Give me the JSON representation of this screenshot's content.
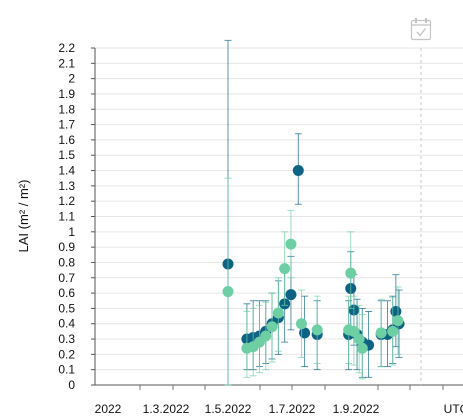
{
  "chart_data": {
    "type": "scatter",
    "title": "",
    "xlabel": "",
    "ylabel": "LAI (m² / m²)",
    "ylim": [
      0,
      2.2
    ],
    "y_ticks": [
      "0",
      "0.1",
      "0.2",
      "0.3",
      "0.4",
      "0.5",
      "0.6",
      "0.7",
      "0.8",
      "0.9",
      "1",
      "1.1",
      "1.2",
      "1.3",
      "1.4",
      "1.5",
      "1.6",
      "1.7",
      "1.8",
      "1.9",
      "2",
      "2.1",
      "2.2"
    ],
    "x_ticks": [
      "2022",
      "1.3.2022",
      "1.5.2022",
      "1.7.2022",
      "1.9.2022",
      "UTC"
    ],
    "grid": true,
    "series": [
      {
        "color": "#0e6384",
        "points": [
          {
            "x": "2022-05-01",
            "y": 0.79,
            "lo": 0.0,
            "hi": 2.25
          },
          {
            "x": "2022-05-19",
            "y": 0.3,
            "lo": 0.1,
            "hi": 0.53
          },
          {
            "x": "2022-05-25",
            "y": 0.31,
            "lo": 0.1,
            "hi": 0.55
          },
          {
            "x": "2022-05-31",
            "y": 0.32,
            "lo": 0.12,
            "hi": 0.55
          },
          {
            "x": "2022-06-06",
            "y": 0.35,
            "lo": 0.14,
            "hi": 0.55
          },
          {
            "x": "2022-06-12",
            "y": 0.4,
            "lo": 0.17,
            "hi": 0.6
          },
          {
            "x": "2022-06-18",
            "y": 0.44,
            "lo": 0.2,
            "hi": 0.68
          },
          {
            "x": "2022-06-24",
            "y": 0.53,
            "lo": 0.28,
            "hi": 0.76
          },
          {
            "x": "2022-06-30",
            "y": 0.59,
            "lo": 0.36,
            "hi": 0.84
          },
          {
            "x": "2022-07-07",
            "y": 1.4,
            "lo": 1.18,
            "hi": 1.64
          },
          {
            "x": "2022-07-13",
            "y": 0.34,
            "lo": 0.12,
            "hi": 0.58
          },
          {
            "x": "2022-07-25",
            "y": 0.33,
            "lo": 0.1,
            "hi": 0.55
          },
          {
            "x": "2022-08-24",
            "y": 0.33,
            "lo": 0.1,
            "hi": 0.55
          },
          {
            "x": "2022-08-26",
            "y": 0.63,
            "lo": 0.38,
            "hi": 0.87
          },
          {
            "x": "2022-08-29",
            "y": 0.49,
            "lo": 0.26,
            "hi": 0.72
          },
          {
            "x": "2022-09-01",
            "y": 0.33,
            "lo": 0.1,
            "hi": 0.56
          },
          {
            "x": "2022-09-06",
            "y": 0.28,
            "lo": 0.05,
            "hi": 0.5
          },
          {
            "x": "2022-09-12",
            "y": 0.26,
            "lo": 0.05,
            "hi": 0.48
          },
          {
            "x": "2022-09-24",
            "y": 0.33,
            "lo": 0.12,
            "hi": 0.55
          },
          {
            "x": "2022-09-30",
            "y": 0.33,
            "lo": 0.12,
            "hi": 0.55
          },
          {
            "x": "2022-10-05",
            "y": 0.36,
            "lo": 0.14,
            "hi": 0.58
          },
          {
            "x": "2022-10-08",
            "y": 0.48,
            "lo": 0.25,
            "hi": 0.72
          },
          {
            "x": "2022-10-11",
            "y": 0.4,
            "lo": 0.18,
            "hi": 0.62
          }
        ]
      },
      {
        "color": "#6fcfa4",
        "points": [
          {
            "x": "2022-05-01",
            "y": 0.61,
            "lo": 0.0,
            "hi": 1.35
          },
          {
            "x": "2022-05-19",
            "y": 0.24,
            "lo": 0.05,
            "hi": 0.48
          },
          {
            "x": "2022-05-25",
            "y": 0.25,
            "lo": 0.06,
            "hi": 0.5
          },
          {
            "x": "2022-05-31",
            "y": 0.28,
            "lo": 0.08,
            "hi": 0.52
          },
          {
            "x": "2022-06-06",
            "y": 0.32,
            "lo": 0.1,
            "hi": 0.54
          },
          {
            "x": "2022-06-12",
            "y": 0.38,
            "lo": 0.15,
            "hi": 0.6
          },
          {
            "x": "2022-06-18",
            "y": 0.47,
            "lo": 0.22,
            "hi": 0.7
          },
          {
            "x": "2022-06-24",
            "y": 0.76,
            "lo": 0.52,
            "hi": 1.0
          },
          {
            "x": "2022-06-30",
            "y": 0.92,
            "lo": 0.7,
            "hi": 1.14
          },
          {
            "x": "2022-07-10",
            "y": 0.4,
            "lo": 0.18,
            "hi": 0.62
          },
          {
            "x": "2022-07-25",
            "y": 0.36,
            "lo": 0.14,
            "hi": 0.58
          },
          {
            "x": "2022-08-24",
            "y": 0.36,
            "lo": 0.14,
            "hi": 0.58
          },
          {
            "x": "2022-08-26",
            "y": 0.73,
            "lo": 0.5,
            "hi": 1.0
          },
          {
            "x": "2022-08-29",
            "y": 0.35,
            "lo": 0.13,
            "hi": 0.58
          },
          {
            "x": "2022-09-03",
            "y": 0.3,
            "lo": 0.08,
            "hi": 0.52
          },
          {
            "x": "2022-09-06",
            "y": 0.24,
            "lo": 0.04,
            "hi": 0.46
          },
          {
            "x": "2022-09-24",
            "y": 0.34,
            "lo": 0.12,
            "hi": 0.56
          },
          {
            "x": "2022-10-05",
            "y": 0.35,
            "lo": 0.13,
            "hi": 0.57
          },
          {
            "x": "2022-10-10",
            "y": 0.42,
            "lo": 0.2,
            "hi": 0.64
          }
        ]
      }
    ]
  },
  "toolbar": {
    "calendar_icon": "calendar-check-icon"
  }
}
